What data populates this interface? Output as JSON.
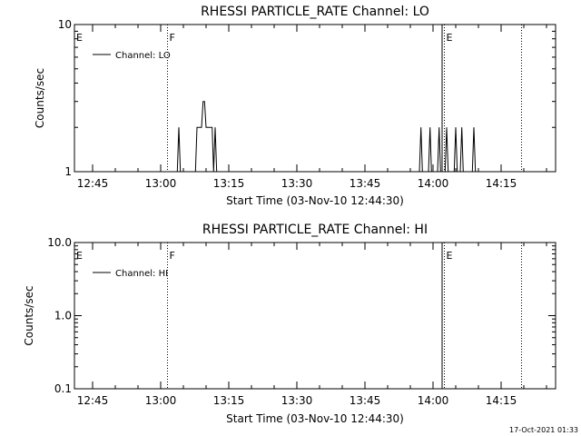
{
  "footer": {
    "timestamp": "17-Oct-2021 01:33"
  },
  "chart_data": [
    {
      "type": "line",
      "title": "RHESSI PARTICLE_RATE Channel: LO",
      "xlabel": "Start Time (03-Nov-10 12:44:30)",
      "ylabel": "Counts/sec",
      "yscale": "log",
      "ylim": [
        1,
        10
      ],
      "xlim": [
        "12:41",
        "14:27"
      ],
      "x_tick_labels": [
        "12:45",
        "13:00",
        "13:15",
        "13:30",
        "13:45",
        "14:00",
        "14:15"
      ],
      "y_tick_labels": [
        "1",
        "10"
      ],
      "legend": {
        "position": "top-left",
        "entries": [
          "Channel: LO"
        ]
      },
      "series": [
        {
          "name": "Channel: LO",
          "color": "#000000",
          "points": [
            [
              "13:03:40",
              1
            ],
            [
              "13:04:00",
              2
            ],
            [
              "13:04:20",
              1
            ],
            [
              "13:07:40",
              1
            ],
            [
              "13:08:00",
              2
            ],
            [
              "13:09:00",
              2
            ],
            [
              "13:09:20",
              3
            ],
            [
              "13:09:40",
              3
            ],
            [
              "13:10:00",
              2
            ],
            [
              "13:11:00",
              2
            ],
            [
              "13:11:20",
              2
            ],
            [
              "13:11:40",
              1
            ],
            [
              "13:12:00",
              2
            ],
            [
              "13:12:20",
              1
            ],
            [
              "13:12:40",
              1
            ],
            [
              "13:57:00",
              1
            ],
            [
              "13:57:20",
              2
            ],
            [
              "13:57:40",
              1
            ],
            [
              "13:59:00",
              1
            ],
            [
              "13:59:20",
              2
            ],
            [
              "13:59:40",
              1
            ],
            [
              "14:01:00",
              1
            ],
            [
              "14:01:20",
              2
            ],
            [
              "14:01:40",
              1
            ],
            [
              "14:02:40",
              1
            ],
            [
              "14:03:00",
              2
            ],
            [
              "14:03:20",
              1
            ],
            [
              "14:04:40",
              1
            ],
            [
              "14:05:00",
              2
            ],
            [
              "14:05:20",
              1
            ],
            [
              "14:06:00",
              1
            ],
            [
              "14:06:20",
              2
            ],
            [
              "14:06:40",
              1
            ],
            [
              "14:08:40",
              1
            ],
            [
              "14:09:00",
              2
            ],
            [
              "14:09:20",
              1
            ]
          ]
        }
      ],
      "vertical_markers": [
        {
          "time": "12:41",
          "label": "E",
          "style": "dotted"
        },
        {
          "time": "13:01:30",
          "label": "F",
          "style": "dotted"
        },
        {
          "time": "14:02:00",
          "label": "",
          "style": "solid"
        },
        {
          "time": "14:02:30",
          "label": "E",
          "style": "dotted"
        },
        {
          "time": "14:19:30",
          "label": "",
          "style": "dotted"
        }
      ]
    },
    {
      "type": "line",
      "title": "RHESSI PARTICLE_RATE Channel: HI",
      "xlabel": "Start Time (03-Nov-10 12:44:30)",
      "ylabel": "Counts/sec",
      "yscale": "log",
      "ylim": [
        0.1,
        10
      ],
      "xlim": [
        "12:41",
        "14:27"
      ],
      "x_tick_labels": [
        "12:45",
        "13:00",
        "13:15",
        "13:30",
        "13:45",
        "14:00",
        "14:15"
      ],
      "y_tick_labels": [
        "0.1",
        "1.0",
        "10.0"
      ],
      "legend": {
        "position": "top-left",
        "entries": [
          "Channel: HI"
        ]
      },
      "series": [
        {
          "name": "Channel: HI",
          "color": "#000000",
          "points": []
        }
      ],
      "vertical_markers": [
        {
          "time": "12:41",
          "label": "E",
          "style": "dotted"
        },
        {
          "time": "13:01:30",
          "label": "F",
          "style": "dotted"
        },
        {
          "time": "14:02:00",
          "label": "",
          "style": "solid"
        },
        {
          "time": "14:02:30",
          "label": "E",
          "style": "dotted"
        },
        {
          "time": "14:19:30",
          "label": "",
          "style": "dotted"
        }
      ]
    }
  ]
}
